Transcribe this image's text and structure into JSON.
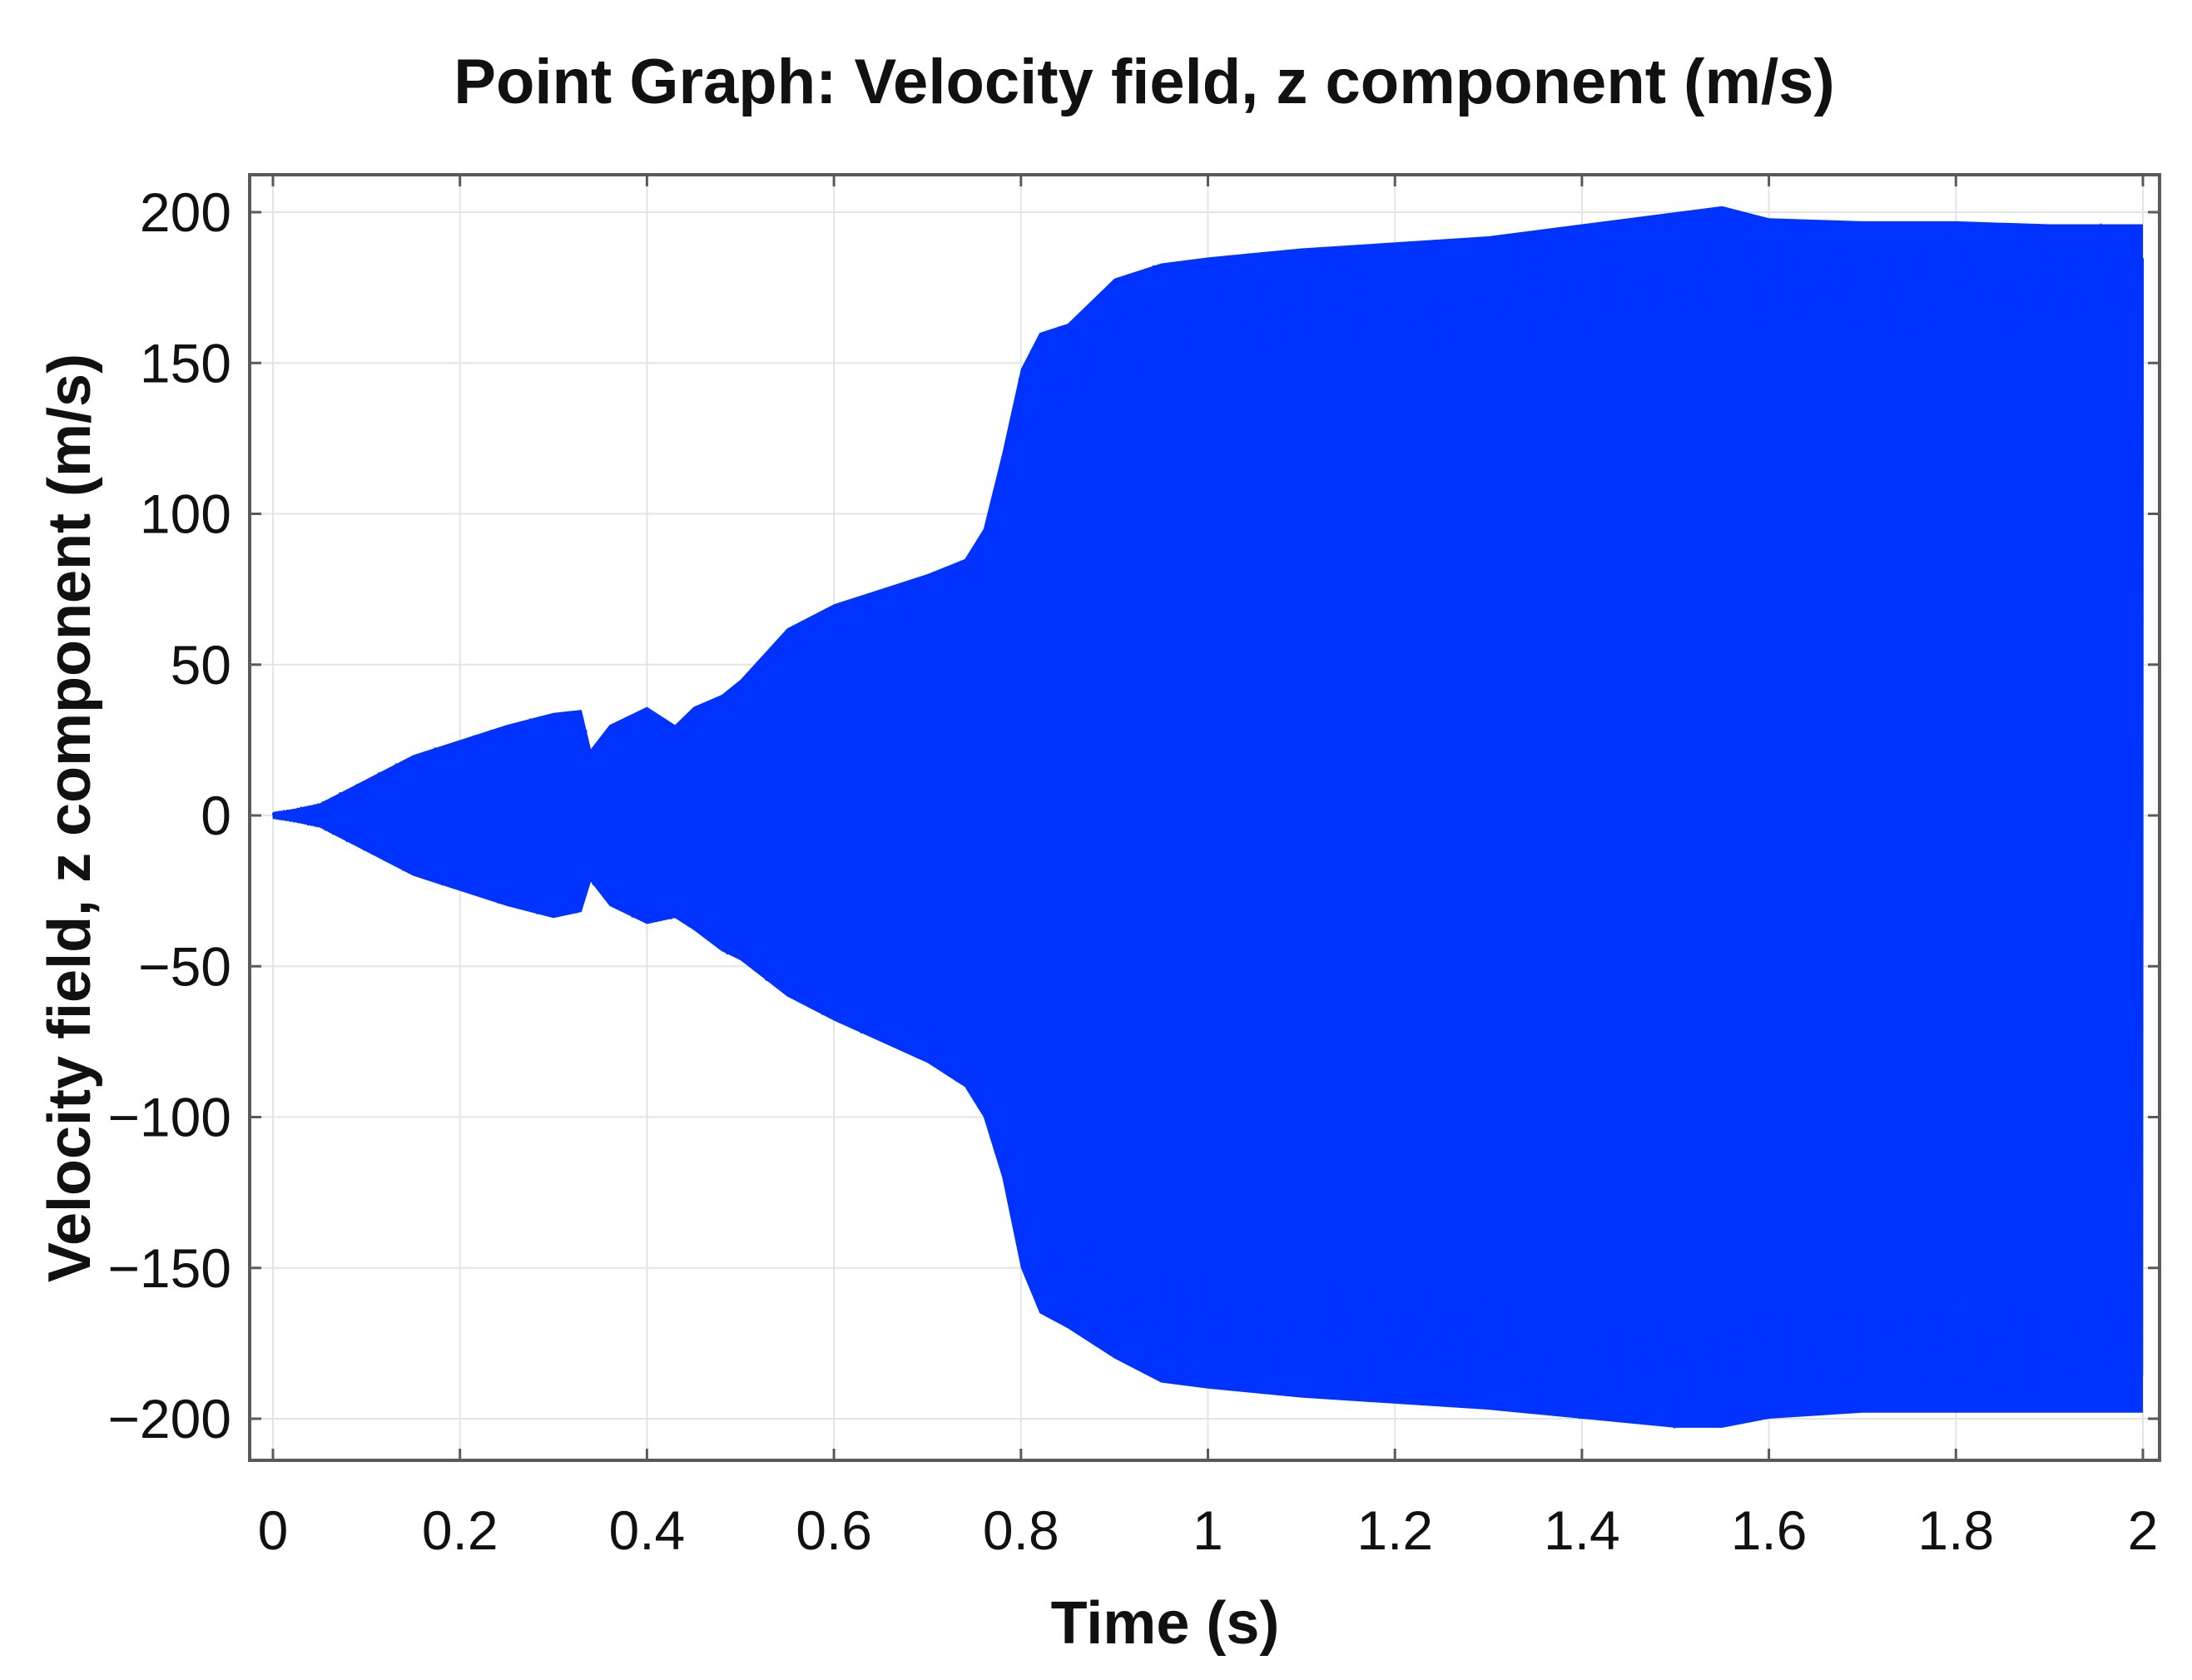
{
  "chart_data": {
    "type": "area",
    "title": "Point Graph: Velocity field, z component (m/s)",
    "xlabel": "Time (s)",
    "ylabel": "Velocity field, z component (m/s)",
    "xlim": [
      0,
      2
    ],
    "ylim": [
      -200,
      200
    ],
    "x_ticks": [
      "0",
      "0.2",
      "0.4",
      "0.6",
      "0.8",
      "1",
      "1.2",
      "1.4",
      "1.6",
      "1.8",
      "2"
    ],
    "y_ticks": [
      "200",
      "150",
      "100",
      "50",
      "0",
      "−50",
      "−100",
      "−150",
      "−200"
    ],
    "grid": true,
    "series_color": "#0033ff",
    "series": [
      {
        "x": [
          0,
          0.02,
          0.05,
          0.1,
          0.15,
          0.2,
          0.25,
          0.3,
          0.33,
          0.34,
          0.36,
          0.4,
          0.43,
          0.45,
          0.48,
          0.5,
          0.55,
          0.6,
          0.65,
          0.7,
          0.74,
          0.76,
          0.78,
          0.8,
          0.82,
          0.85,
          0.9,
          0.95,
          1.0,
          1.1,
          1.2,
          1.3,
          1.4,
          1.5,
          1.55,
          1.6,
          1.7,
          1.8,
          1.9,
          2.0
        ],
        "envelope_upper": [
          1,
          2,
          4,
          12,
          20,
          25,
          30,
          34,
          35,
          22,
          30,
          36,
          30,
          36,
          40,
          45,
          62,
          70,
          75,
          80,
          85,
          95,
          120,
          148,
          160,
          163,
          178,
          183,
          185,
          188,
          190,
          192,
          196,
          200,
          202,
          198,
          197,
          197,
          196,
          196
        ],
        "envelope_lower": [
          -1,
          -2,
          -4,
          -12,
          -20,
          -25,
          -30,
          -34,
          -32,
          -22,
          -30,
          -36,
          -34,
          -38,
          -45,
          -48,
          -60,
          -68,
          -75,
          -82,
          -90,
          -100,
          -120,
          -150,
          -165,
          -170,
          -180,
          -188,
          -190,
          -193,
          -195,
          -197,
          -200,
          -203,
          -203,
          -200,
          -198,
          -198,
          -198,
          -198
        ]
      }
    ]
  }
}
